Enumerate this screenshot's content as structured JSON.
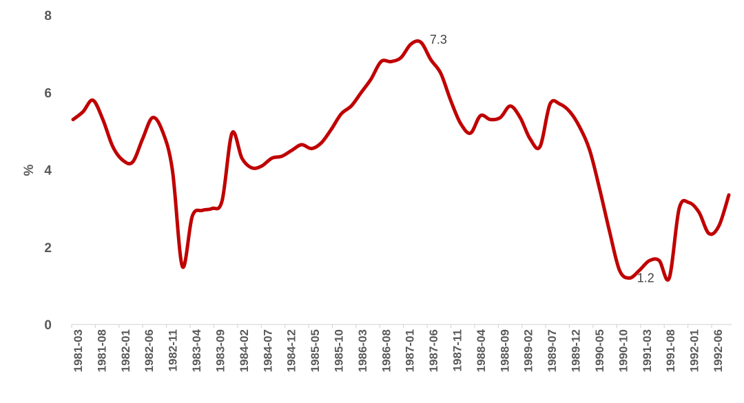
{
  "chart_data": {
    "type": "line",
    "title": "",
    "xlabel": "",
    "ylabel": "%",
    "ylim": [
      0,
      8
    ],
    "yticks": [
      "0",
      "2",
      "4",
      "6",
      "8"
    ],
    "grid": false,
    "legend": "none",
    "x_tick_labels": [
      "1981-03",
      "1981-08",
      "1982-01",
      "1982-06",
      "1982-11",
      "1983-04",
      "1983-09",
      "1984-02",
      "1984-07",
      "1984-12",
      "1985-05",
      "1985-10",
      "1986-03",
      "1986-08",
      "1987-01",
      "1987-06",
      "1987-11",
      "1988-04",
      "1988-09",
      "1989-02",
      "1989-07",
      "1989-12",
      "1990-05",
      "1990-10",
      "1991-03",
      "1991-08",
      "1992-01",
      "1992-06"
    ],
    "line_color": "#C00000",
    "series": [
      {
        "values": [
          5.3,
          5.5,
          5.8,
          5.3,
          4.6,
          4.25,
          4.2,
          4.8,
          5.35,
          5.0,
          4.0,
          1.5,
          2.8,
          2.95,
          3.0,
          3.2,
          4.95,
          4.3,
          4.05,
          4.1,
          4.3,
          4.35,
          4.5,
          4.65,
          4.55,
          4.7,
          5.05,
          5.45,
          5.65,
          6.0,
          6.35,
          6.8,
          6.8,
          6.9,
          7.25,
          7.3,
          6.85,
          6.5,
          5.8,
          5.2,
          4.95,
          5.4,
          5.3,
          5.35,
          5.65,
          5.35,
          4.8,
          4.6,
          5.7,
          5.7,
          5.5,
          5.1,
          4.5,
          3.5,
          2.4,
          1.4,
          1.2,
          1.4,
          1.65,
          1.65,
          1.2,
          3.0,
          3.15,
          2.9,
          2.35,
          2.55,
          3.35
        ]
      }
    ],
    "annotations": [
      {
        "label": "7.3",
        "index": 35,
        "value": 7.3
      },
      {
        "label": "1.2",
        "index": 56,
        "value": 1.2
      }
    ]
  }
}
